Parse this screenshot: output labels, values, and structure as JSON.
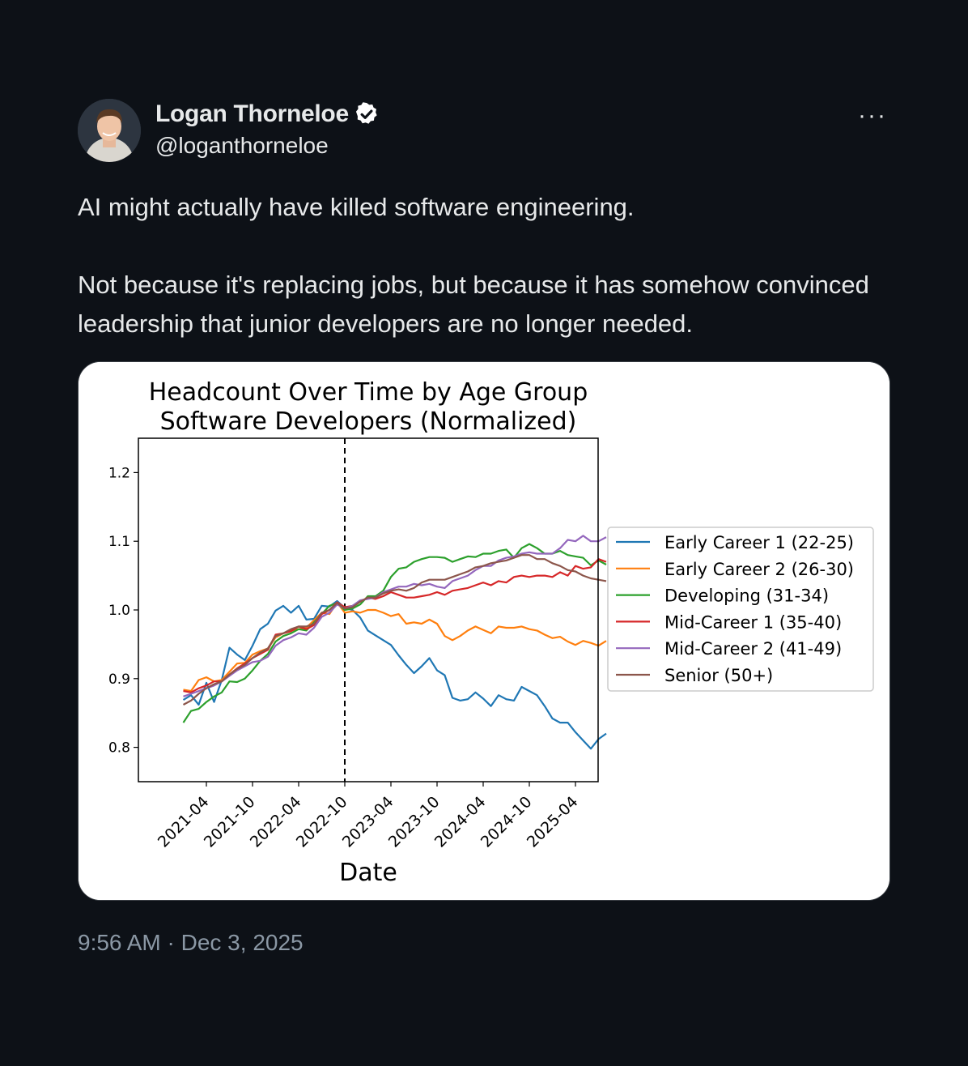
{
  "author": {
    "name": "Logan Thorneloe",
    "handle": "@loganthorneloe",
    "verified": true,
    "avatar_icon": "avatar-photo"
  },
  "more_label": "···",
  "tweet": {
    "paragraphs": [
      "AI might actually have killed software engineering.",
      "Not because it's replacing jobs, but because it has somehow convinced leadership that junior developers are no longer needed."
    ]
  },
  "timestamp": "9:56 AM · Dec 3, 2025",
  "colors": {
    "background": "#0d1117",
    "text": "#e7e9ea",
    "muted": "#8b98a5",
    "verified": "#ffffff"
  },
  "chart_data": {
    "type": "line",
    "title": [
      "Headcount Over Time by Age Group",
      "Software Developers (Normalized)"
    ],
    "xlabel": "Date",
    "ylabel": "",
    "ylim": [
      0.75,
      1.25
    ],
    "yticks": [
      0.8,
      0.9,
      1.0,
      1.1,
      1.2
    ],
    "xticks": [
      "2021-04",
      "2021-10",
      "2022-04",
      "2022-10",
      "2023-04",
      "2023-10",
      "2024-04",
      "2024-10",
      "2025-04"
    ],
    "x_start": "2021-01",
    "vline": "2022-10",
    "legend_position": "outside-right",
    "series": [
      {
        "name": "Early Career 1 (22-25)",
        "color": "#1f77b4",
        "values": [
          0.869,
          0.876,
          0.862,
          0.894,
          0.866,
          0.898,
          0.945,
          0.935,
          0.927,
          0.948,
          0.972,
          0.98,
          0.999,
          1.006,
          0.996,
          1.006,
          0.986,
          0.987,
          1.006,
          1.005,
          1.013,
          1.003,
          1.0,
          0.989,
          0.97,
          0.963,
          0.956,
          0.949,
          0.934,
          0.92,
          0.908,
          0.918,
          0.93,
          0.912,
          0.905,
          0.872,
          0.868,
          0.87,
          0.88,
          0.871,
          0.86,
          0.876,
          0.87,
          0.868,
          0.888,
          0.882,
          0.876,
          0.86,
          0.842,
          0.836,
          0.836,
          0.822,
          0.81,
          0.798,
          0.812,
          0.82
        ]
      },
      {
        "name": "Early Career 2 (26-30)",
        "color": "#ff7f0e",
        "values": [
          0.884,
          0.882,
          0.898,
          0.902,
          0.896,
          0.898,
          0.91,
          0.922,
          0.923,
          0.935,
          0.94,
          0.944,
          0.96,
          0.966,
          0.97,
          0.972,
          0.974,
          0.985,
          0.996,
          0.994,
          1.011,
          0.996,
          0.998,
          0.996,
          1.0,
          1.0,
          0.996,
          0.991,
          0.994,
          0.98,
          0.982,
          0.98,
          0.986,
          0.98,
          0.962,
          0.956,
          0.962,
          0.97,
          0.976,
          0.971,
          0.966,
          0.976,
          0.974,
          0.974,
          0.976,
          0.972,
          0.97,
          0.964,
          0.959,
          0.961,
          0.954,
          0.949,
          0.955,
          0.952,
          0.948,
          0.955
        ]
      },
      {
        "name": "Developing (31-34)",
        "color": "#2ca02c",
        "values": [
          0.836,
          0.853,
          0.856,
          0.866,
          0.874,
          0.88,
          0.896,
          0.895,
          0.9,
          0.912,
          0.926,
          0.936,
          0.954,
          0.962,
          0.966,
          0.972,
          0.97,
          0.982,
          0.994,
          1.006,
          1.01,
          1.0,
          1.002,
          1.008,
          1.02,
          1.02,
          1.028,
          1.048,
          1.06,
          1.062,
          1.07,
          1.074,
          1.077,
          1.077,
          1.076,
          1.07,
          1.074,
          1.078,
          1.077,
          1.082,
          1.082,
          1.086,
          1.088,
          1.076,
          1.09,
          1.096,
          1.09,
          1.082,
          1.082,
          1.086,
          1.08,
          1.078,
          1.076,
          1.065,
          1.072,
          1.066
        ]
      },
      {
        "name": "Mid-Career 1 (35-40)",
        "color": "#d62728",
        "values": [
          0.882,
          0.88,
          0.886,
          0.89,
          0.896,
          0.896,
          0.906,
          0.915,
          0.922,
          0.93,
          0.936,
          0.942,
          0.964,
          0.966,
          0.969,
          0.976,
          0.972,
          0.978,
          0.994,
          1.0,
          1.011,
          1.004,
          1.006,
          1.012,
          1.018,
          1.016,
          1.02,
          1.026,
          1.022,
          1.018,
          1.018,
          1.02,
          1.022,
          1.026,
          1.022,
          1.028,
          1.03,
          1.032,
          1.036,
          1.04,
          1.036,
          1.042,
          1.04,
          1.048,
          1.05,
          1.048,
          1.05,
          1.05,
          1.048,
          1.055,
          1.05,
          1.064,
          1.06,
          1.062,
          1.074,
          1.07
        ]
      },
      {
        "name": "Mid-Career 2 (41-49)",
        "color": "#9467bd",
        "values": [
          0.874,
          0.878,
          0.882,
          0.886,
          0.89,
          0.896,
          0.904,
          0.912,
          0.918,
          0.924,
          0.926,
          0.932,
          0.948,
          0.956,
          0.96,
          0.966,
          0.964,
          0.974,
          0.99,
          0.996,
          1.008,
          1.002,
          1.006,
          1.014,
          1.016,
          1.018,
          1.026,
          1.03,
          1.034,
          1.034,
          1.038,
          1.036,
          1.038,
          1.034,
          1.032,
          1.042,
          1.046,
          1.05,
          1.058,
          1.064,
          1.064,
          1.072,
          1.076,
          1.078,
          1.082,
          1.084,
          1.082,
          1.082,
          1.082,
          1.09,
          1.102,
          1.1,
          1.108,
          1.1,
          1.1,
          1.106
        ]
      },
      {
        "name": "Senior (50+)",
        "color": "#8c564b",
        "values": [
          0.862,
          0.868,
          0.878,
          0.886,
          0.892,
          0.896,
          0.906,
          0.914,
          0.92,
          0.93,
          0.938,
          0.944,
          0.962,
          0.966,
          0.972,
          0.976,
          0.976,
          0.98,
          0.996,
          1.0,
          1.01,
          1.002,
          1.004,
          1.012,
          1.018,
          1.018,
          1.024,
          1.028,
          1.03,
          1.028,
          1.032,
          1.04,
          1.044,
          1.044,
          1.044,
          1.048,
          1.052,
          1.056,
          1.062,
          1.064,
          1.068,
          1.07,
          1.072,
          1.076,
          1.08,
          1.08,
          1.074,
          1.074,
          1.068,
          1.064,
          1.058,
          1.056,
          1.05,
          1.046,
          1.044,
          1.042
        ]
      }
    ]
  }
}
